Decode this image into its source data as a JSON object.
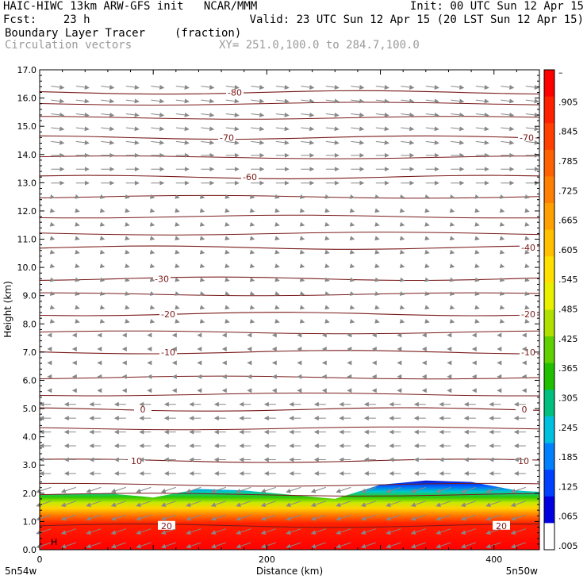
{
  "header": {
    "title": "HAIC-HIWC 13km ARW-GFS init   NCAR/MMM",
    "init": "Init: 00 UTC Sun 12 Apr 15",
    "fcst": "Fcst:    23 h",
    "valid": "Valid: 23 UTC Sun 12 Apr 15 (20 LST Sun 12 Apr 15)",
    "field": "Boundary Layer Tracer",
    "field_units": "(fraction)",
    "vectors": "Circulation vectors",
    "xy": "XY= 251.0,100.0 to 284.7,100.0"
  },
  "colors": {
    "contour": "#7a1a1a",
    "vectors": "#888888"
  },
  "chart_data": {
    "type": "heatmap",
    "xlabel": "Distance (km)",
    "ylabel": "Height (km)",
    "xlim": [
      0,
      440
    ],
    "ylim": [
      0,
      17
    ],
    "x_ticks": [
      0,
      200,
      400
    ],
    "y_ticks": [
      "0.0",
      "1.0",
      "2.0",
      "3.0",
      "4.0",
      "5.0",
      "6.0",
      "7.0",
      "8.0",
      "9.0",
      "10.0",
      "11.0",
      "12.0",
      "13.0",
      "14.0",
      "15.0",
      "16.0",
      "17.0"
    ],
    "x_end_labels": [
      "5n54w",
      "5n50w"
    ],
    "tracer_top_km": {
      "x": [
        0,
        60,
        100,
        140,
        180,
        220,
        260,
        300,
        340,
        380,
        420,
        440
      ],
      "top": [
        1.95,
        2.0,
        1.85,
        2.15,
        2.1,
        1.95,
        1.8,
        2.3,
        2.45,
        2.4,
        2.1,
        2.05
      ]
    },
    "temperature_contours": [
      {
        "label": "20",
        "height": 0.85
      },
      {
        "label": "10",
        "height": 3.15
      },
      {
        "label": "0",
        "height": 4.97
      },
      {
        "label": "-10",
        "height": 7.0
      },
      {
        "label": "-20",
        "height": 8.35
      },
      {
        "label": "-30",
        "height": 9.6
      },
      {
        "label": "-40",
        "height": 10.7
      },
      {
        "label": "-60",
        "height": 13.2
      },
      {
        "label": "-70",
        "height": 14.6
      },
      {
        "label": "-80",
        "height": 16.2
      }
    ],
    "colorbar": {
      "labels": [
        "–",
        ".905",
        ".845",
        ".785",
        ".725",
        ".665",
        ".605",
        ".545",
        ".485",
        ".425",
        ".365",
        ".305",
        ".245",
        ".185",
        ".125",
        ".065",
        ".005"
      ],
      "colors": [
        "#ff0000",
        "#ff2000",
        "#ff4000",
        "#ff6000",
        "#ff8000",
        "#ffa000",
        "#ffc000",
        "#ffe000",
        "#e8f000",
        "#b0e000",
        "#60d000",
        "#20c000",
        "#00c080",
        "#00c0e0",
        "#0080ff",
        "#0040ff",
        "#0000e0",
        "#ffffff"
      ]
    },
    "markers": [
      "H"
    ]
  }
}
